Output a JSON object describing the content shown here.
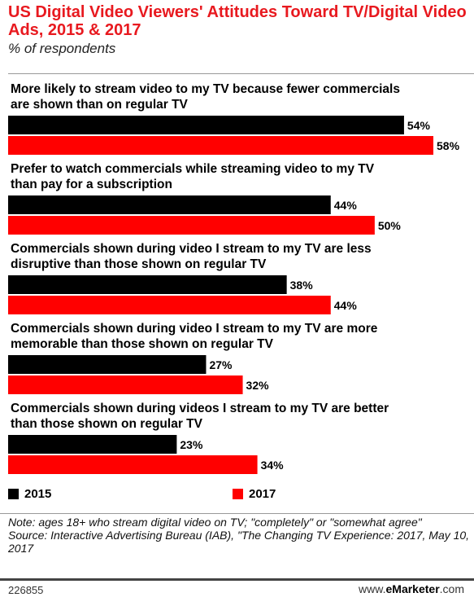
{
  "header": {
    "title": "US Digital Video Viewers' Attitudes Toward TV/Digital Video Ads, 2015 & 2017",
    "subtitle": "% of respondents"
  },
  "colors": {
    "series_2015": "#000000",
    "series_2017": "#ff0000",
    "title": "#e8191f"
  },
  "chart_data": {
    "type": "bar",
    "orientation": "horizontal",
    "title": "US Digital Video Viewers' Attitudes Toward TV/Digital Video Ads, 2015 & 2017",
    "subtitle": "% of respondents",
    "categories": [
      [
        "More likely to stream video to my TV because fewer commercials",
        "are shown than on regular TV"
      ],
      [
        "Prefer to watch commercials while streaming video to my TV",
        "than pay for a subscription"
      ],
      [
        "Commercials shown during video I stream to my TV are less",
        "disruptive than those shown on regular TV"
      ],
      [
        "Commercials shown during video I stream to my TV are more",
        "memorable than those shown on regular TV"
      ],
      [
        "Commercials shown during videos I stream to my TV are better",
        "than those shown on regular TV"
      ]
    ],
    "series": [
      {
        "name": "2015",
        "values": [
          54,
          44,
          38,
          27,
          23
        ],
        "labels": [
          "54%",
          "44%",
          "38%",
          "27%",
          "23%"
        ]
      },
      {
        "name": "2017",
        "values": [
          58,
          50,
          44,
          32,
          34
        ],
        "labels": [
          "58%",
          "50%",
          "44%",
          "32%",
          "34%"
        ]
      }
    ],
    "xlim": [
      0,
      58
    ],
    "unit": "%",
    "legend": "bottom-left",
    "grid": false
  },
  "legend": {
    "items": [
      {
        "label": "2015"
      },
      {
        "label": "2017"
      }
    ]
  },
  "notes": {
    "note": "Note: ages 18+ who stream digital video on TV; \"completely\" or \"somewhat agree\"",
    "source": "Source: Interactive Advertising Bureau (IAB), \"The Changing TV Experience: 2017, May 10, 2017"
  },
  "footer": {
    "id": "226855",
    "brand_prefix": "www.",
    "brand_name": "eMarketer",
    "brand_suffix": ".com"
  }
}
